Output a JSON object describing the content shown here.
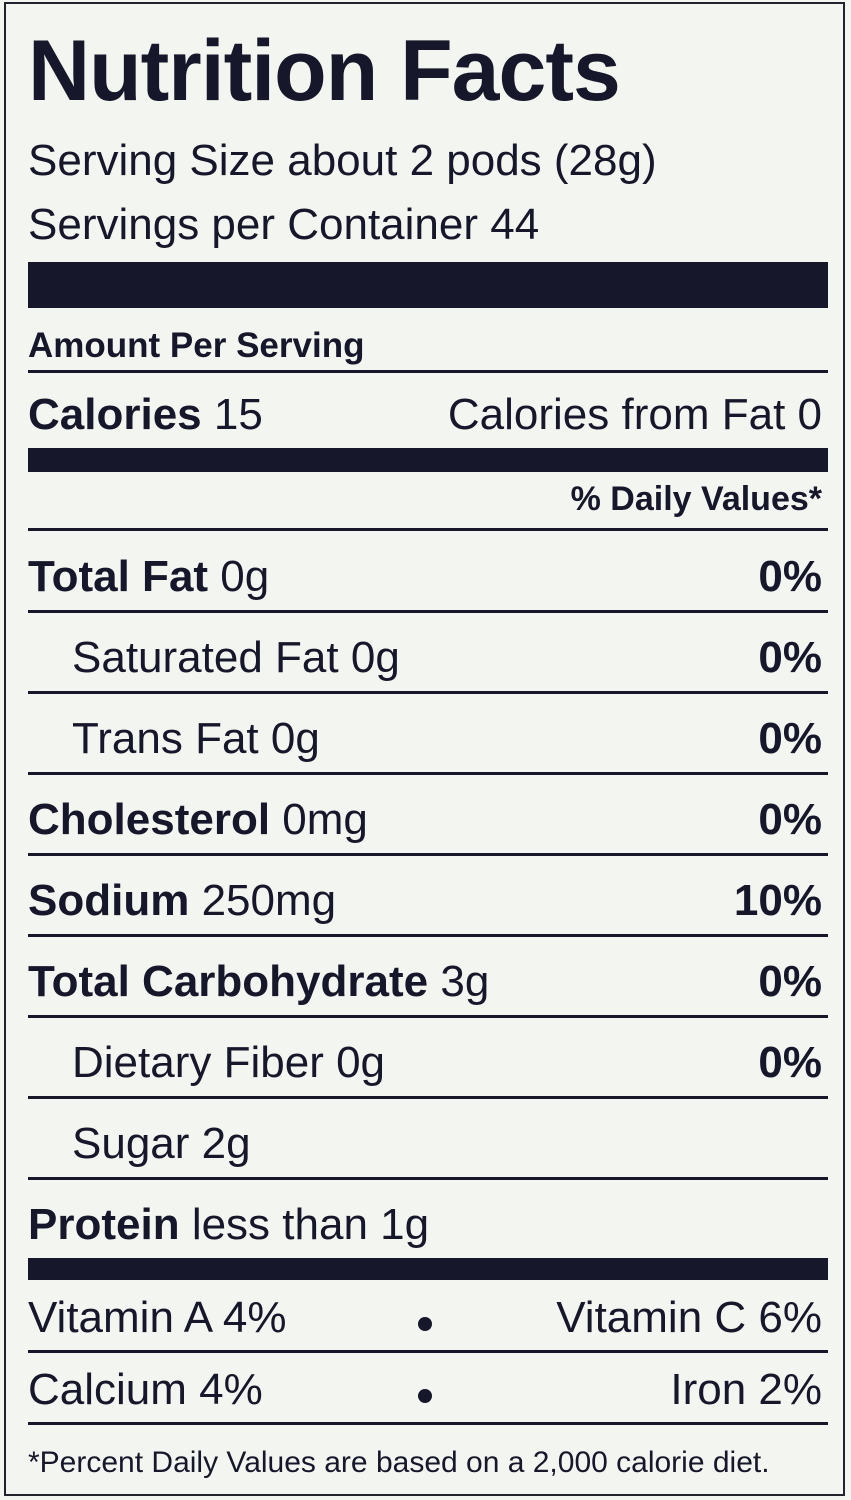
{
  "title": "Nutrition Facts",
  "serving_size": "Serving Size about 2 pods (28g)",
  "servings_per_container": "Servings per Container 44",
  "amount_per_serving": "Amount Per Serving",
  "calories": {
    "label": "Calories",
    "value": "15",
    "from_fat": "Calories from Fat 0"
  },
  "daily_values_header": "% Daily Values*",
  "nutrients": [
    {
      "label": "Total Fat",
      "amount": "0g",
      "dv": "0%"
    },
    {
      "label": "Saturated Fat",
      "amount": "0g",
      "dv": "0%"
    },
    {
      "label": "Trans Fat",
      "amount": "0g",
      "dv": "0%"
    },
    {
      "label": "Cholesterol",
      "amount": "0mg",
      "dv": "0%"
    },
    {
      "label": "Sodium",
      "amount": "250mg",
      "dv": "10%"
    },
    {
      "label": "Total Carbohydrate",
      "amount": "3g",
      "dv": "0%"
    },
    {
      "label": "Dietary Fiber",
      "amount": "0g",
      "dv": "0%"
    },
    {
      "label": "Sugar",
      "amount": "2g"
    },
    {
      "label": "Protein",
      "amount": "less than 1g"
    }
  ],
  "vitamins": [
    [
      "Vitamin A 4%",
      "Vitamin C 6%"
    ],
    [
      "Calcium 4%",
      "Iron 2%"
    ]
  ],
  "footnote": "*Percent Daily Values are based on a 2,000 calorie diet."
}
